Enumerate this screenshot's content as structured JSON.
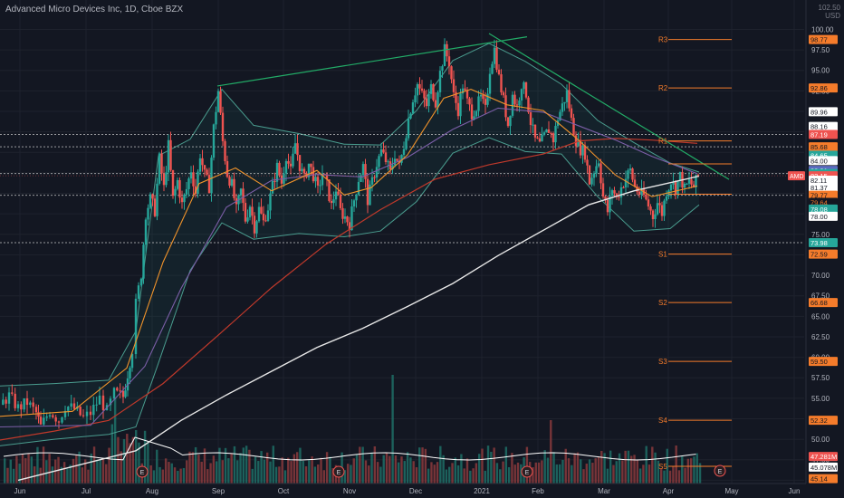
{
  "title": "Advanced Micro Devices Inc, 1D, Cboe BZX",
  "currency_label": "USD",
  "top_tick": "102.50",
  "colors": {
    "background": "#131722",
    "up": "#26a69a",
    "down": "#ef5350",
    "bollinger": "#4a9d8f",
    "trendline": "#22ab67",
    "sma200": "#e8e8e8",
    "sma100": "#c0392b",
    "sma50": "#7b5ea7",
    "sma20": "#f0932b",
    "pivot": "#f57c2b"
  },
  "chart_data": {
    "type": "candlestick",
    "x_ticks": [
      "Jun",
      "Jul",
      "Aug",
      "Sep",
      "Oct",
      "Nov",
      "Dec",
      "2021",
      "Feb",
      "Mar",
      "Apr",
      "May",
      "Jun"
    ],
    "y_ticks": [
      "100.00",
      "97.50",
      "95.00",
      "92.50",
      "90.00",
      "87.50",
      "85.00",
      "82.50",
      "80.00",
      "77.50",
      "75.00",
      "72.50",
      "70.00",
      "67.50",
      "65.00",
      "62.50",
      "60.00",
      "57.50",
      "55.00",
      "52.50",
      "50.00",
      "47.50",
      "45.00"
    ],
    "ylim": [
      44.6,
      101.6
    ],
    "price_path": [
      [
        0,
        54.2
      ],
      [
        10,
        55.3
      ],
      [
        20,
        53.8
      ],
      [
        30,
        54.5
      ],
      [
        40,
        53.2
      ],
      [
        45,
        51.5
      ],
      [
        55,
        53.5
      ],
      [
        65,
        52.3
      ],
      [
        72,
        54.1
      ],
      [
        82,
        53.7
      ],
      [
        92,
        52.6
      ],
      [
        100,
        53.2
      ],
      [
        110,
        55.0
      ],
      [
        118,
        53.4
      ],
      [
        126,
        55.6
      ],
      [
        136,
        55.2
      ],
      [
        141,
        58.0
      ],
      [
        146,
        61.0
      ],
      [
        150,
        66.5
      ],
      [
        156,
        70.2
      ],
      [
        161,
        77.6
      ],
      [
        166,
        79.3
      ],
      [
        171,
        77.9
      ],
      [
        176,
        84.2
      ],
      [
        181,
        80.6
      ],
      [
        186,
        85.8
      ],
      [
        191,
        79.3
      ],
      [
        196,
        81.5
      ],
      [
        201,
        78.6
      ],
      [
        206,
        80.5
      ],
      [
        211,
        82.9
      ],
      [
        216,
        80.1
      ],
      [
        221,
        84.8
      ],
      [
        226,
        82.2
      ],
      [
        231,
        80.8
      ],
      [
        236,
        88.0
      ],
      [
        241,
        92.5
      ],
      [
        246,
        86.3
      ],
      [
        251,
        82.4
      ],
      [
        256,
        81.0
      ],
      [
        261,
        77.9
      ],
      [
        266,
        80.3
      ],
      [
        271,
        76.8
      ],
      [
        276,
        78.6
      ],
      [
        281,
        75.9
      ],
      [
        286,
        78.1
      ],
      [
        291,
        76.5
      ],
      [
        296,
        78.3
      ],
      [
        301,
        80.9
      ],
      [
        306,
        83.2
      ],
      [
        311,
        81.3
      ],
      [
        316,
        84.7
      ],
      [
        321,
        82.6
      ],
      [
        326,
        86.1
      ],
      [
        331,
        83.4
      ],
      [
        336,
        81.7
      ],
      [
        341,
        83.6
      ],
      [
        346,
        82.2
      ],
      [
        351,
        80.3
      ],
      [
        356,
        82.5
      ],
      [
        361,
        81.0
      ],
      [
        366,
        78.4
      ],
      [
        371,
        80.6
      ],
      [
        376,
        77.8
      ],
      [
        381,
        77.1
      ],
      [
        386,
        76.3
      ],
      [
        391,
        79.2
      ],
      [
        396,
        81.8
      ],
      [
        401,
        83.3
      ],
      [
        406,
        79.2
      ],
      [
        411,
        81.4
      ],
      [
        416,
        83.6
      ],
      [
        421,
        85.1
      ],
      [
        426,
        84.0
      ],
      [
        431,
        82.5
      ],
      [
        436,
        84.8
      ],
      [
        441,
        83.2
      ],
      [
        446,
        85.9
      ],
      [
        451,
        89.1
      ],
      [
        456,
        91.6
      ],
      [
        461,
        93.3
      ],
      [
        466,
        92.0
      ],
      [
        471,
        90.7
      ],
      [
        476,
        92.9
      ],
      [
        481,
        91.2
      ],
      [
        486,
        94.7
      ],
      [
        491,
        97.5
      ],
      [
        496,
        96.0
      ],
      [
        501,
        91.9
      ],
      [
        506,
        90.2
      ],
      [
        511,
        93.2
      ],
      [
        516,
        91.1
      ],
      [
        521,
        89.8
      ],
      [
        526,
        90.5
      ],
      [
        531,
        91.6
      ],
      [
        536,
        90.1
      ],
      [
        541,
        95.2
      ],
      [
        546,
        97.6
      ],
      [
        551,
        94.1
      ],
      [
        556,
        91.3
      ],
      [
        561,
        88.4
      ],
      [
        566,
        92.0
      ],
      [
        571,
        90.5
      ],
      [
        576,
        93.4
      ],
      [
        581,
        92.2
      ],
      [
        586,
        88.7
      ],
      [
        591,
        86.5
      ],
      [
        596,
        85.9
      ],
      [
        601,
        86.9
      ],
      [
        606,
        87.8
      ],
      [
        611,
        86.6
      ],
      [
        616,
        89.2
      ],
      [
        621,
        90.7
      ],
      [
        626,
        92.3
      ],
      [
        631,
        88.9
      ],
      [
        636,
        86.5
      ],
      [
        641,
        85.4
      ],
      [
        646,
        84.9
      ],
      [
        651,
        81.4
      ],
      [
        656,
        82.8
      ],
      [
        661,
        84.1
      ],
      [
        666,
        79.6
      ],
      [
        671,
        77.8
      ],
      [
        676,
        80.6
      ],
      [
        681,
        79.4
      ],
      [
        686,
        80.7
      ],
      [
        691,
        81.9
      ],
      [
        696,
        82.8
      ],
      [
        701,
        80.8
      ],
      [
        706,
        80.0
      ],
      [
        711,
        79.7
      ],
      [
        716,
        78.5
      ],
      [
        721,
        77.2
      ],
      [
        726,
        78.9
      ],
      [
        731,
        77.6
      ],
      [
        736,
        80.3
      ],
      [
        741,
        81.5
      ],
      [
        746,
        80.7
      ],
      [
        751,
        82.1
      ],
      [
        756,
        80.5
      ],
      [
        761,
        81.4
      ],
      [
        766,
        80.8
      ],
      [
        771,
        82.15
      ]
    ],
    "sma200_path": [
      [
        20,
        45.0
      ],
      [
        150,
        48.6
      ],
      [
        200,
        52.3
      ],
      [
        250,
        55.4
      ],
      [
        300,
        58.3
      ],
      [
        350,
        61.2
      ],
      [
        400,
        63.5
      ],
      [
        450,
        66.2
      ],
      [
        500,
        69.0
      ],
      [
        550,
        72.4
      ],
      [
        600,
        75.5
      ],
      [
        650,
        78.6
      ],
      [
        700,
        80.3
      ],
      [
        772,
        82.1
      ]
    ],
    "sma100_path": [
      [
        0,
        49.9
      ],
      [
        60,
        51.0
      ],
      [
        120,
        52.3
      ],
      [
        180,
        56.8
      ],
      [
        240,
        62.6
      ],
      [
        300,
        68.5
      ],
      [
        360,
        73.8
      ],
      [
        420,
        78.0
      ],
      [
        480,
        81.7
      ],
      [
        540,
        83.5
      ],
      [
        600,
        84.8
      ],
      [
        640,
        86.4
      ],
      [
        680,
        86.7
      ],
      [
        720,
        86.5
      ],
      [
        770,
        86.1
      ]
    ],
    "sma50_path": [
      [
        0,
        51.5
      ],
      [
        100,
        51.7
      ],
      [
        160,
        58.9
      ],
      [
        200,
        68.4
      ],
      [
        250,
        78.3
      ],
      [
        300,
        81.6
      ],
      [
        350,
        82.3
      ],
      [
        400,
        82.0
      ],
      [
        450,
        84.4
      ],
      [
        500,
        87.8
      ],
      [
        550,
        90.4
      ],
      [
        600,
        89.9
      ],
      [
        640,
        88.2
      ],
      [
        680,
        86.5
      ],
      [
        720,
        84.5
      ],
      [
        770,
        82.4
      ]
    ],
    "sma20_path": [
      [
        0,
        52.8
      ],
      [
        80,
        53.4
      ],
      [
        140,
        58.7
      ],
      [
        180,
        71.6
      ],
      [
        220,
        81.2
      ],
      [
        260,
        83.1
      ],
      [
        300,
        80.3
      ],
      [
        350,
        82.8
      ],
      [
        380,
        79.8
      ],
      [
        410,
        80.7
      ],
      [
        450,
        84.7
      ],
      [
        490,
        91.6
      ],
      [
        520,
        92.7
      ],
      [
        560,
        90.8
      ],
      [
        600,
        90.1
      ],
      [
        640,
        86.4
      ],
      [
        680,
        82.2
      ],
      [
        720,
        79.6
      ],
      [
        770,
        80.9
      ]
    ],
    "upper_band_path": [
      [
        0,
        56.5
      ],
      [
        60,
        56.8
      ],
      [
        120,
        57.2
      ],
      [
        150,
        63.2
      ],
      [
        175,
        84.6
      ],
      [
        210,
        86.6
      ],
      [
        245,
        92.7
      ],
      [
        280,
        88.3
      ],
      [
        330,
        87.3
      ],
      [
        380,
        86.0
      ],
      [
        420,
        85.9
      ],
      [
        460,
        90.1
      ],
      [
        500,
        96.2
      ],
      [
        540,
        98.3
      ],
      [
        580,
        96.1
      ],
      [
        620,
        93.3
      ],
      [
        660,
        88.9
      ],
      [
        700,
        86.2
      ],
      [
        740,
        83.7
      ],
      [
        772,
        82.6
      ]
    ],
    "lower_band_path": [
      [
        0,
        49.2
      ],
      [
        60,
        50.0
      ],
      [
        120,
        50.6
      ],
      [
        150,
        51.5
      ],
      [
        175,
        59.3
      ],
      [
        210,
        70.6
      ],
      [
        245,
        76.4
      ],
      [
        280,
        74.4
      ],
      [
        330,
        75.1
      ],
      [
        380,
        74.7
      ],
      [
        420,
        75.4
      ],
      [
        460,
        79.0
      ],
      [
        500,
        84.9
      ],
      [
        540,
        86.8
      ],
      [
        580,
        85.1
      ],
      [
        620,
        84.8
      ],
      [
        660,
        79.6
      ],
      [
        700,
        75.4
      ],
      [
        740,
        75.7
      ],
      [
        772,
        78.6
      ]
    ],
    "trendlines": [
      {
        "from": [
          240,
          93.1
        ],
        "to": [
          582,
          99.1
        ]
      },
      {
        "from": [
          540,
          99.5
        ],
        "to": [
          805,
          81.7
        ]
      }
    ],
    "horizontal_levels": [
      {
        "price": 87.19,
        "style": "dotted"
      },
      {
        "price": 85.68,
        "style": "dotted"
      },
      {
        "price": 82.42,
        "style": "dotted"
      },
      {
        "price": 79.77,
        "style": "dotted"
      },
      {
        "price": 73.98,
        "style": "dotted"
      }
    ],
    "pivots": [
      {
        "label": "R3",
        "price": 98.77
      },
      {
        "label": "R2",
        "price": 92.86
      },
      {
        "label": "R1",
        "price": 86.4
      },
      {
        "label": "",
        "price": 83.6
      },
      {
        "label": "",
        "price": 79.9
      },
      {
        "label": "S1",
        "price": 72.59
      },
      {
        "label": "S2",
        "price": 66.68
      },
      {
        "label": "S3",
        "price": 59.5
      },
      {
        "label": "S4",
        "price": 52.32
      },
      {
        "label": "S5",
        "price": 46.7
      }
    ],
    "price_labels": [
      {
        "text": "98.77",
        "price": 98.77,
        "bg": "#f57c2b",
        "fg": "#131722"
      },
      {
        "text": "92.86",
        "price": 92.86,
        "bg": "#f57c2b",
        "fg": "#131722"
      },
      {
        "text": "89.96",
        "price": 89.96,
        "bg": "#ffffff",
        "fg": "#131722"
      },
      {
        "text": "88.16",
        "price": 88.16,
        "bg": "#ffffff",
        "fg": "#131722"
      },
      {
        "text": "87.19",
        "price": 87.19,
        "bg": "#ef5350",
        "fg": "#ffffff"
      },
      {
        "text": "85.68",
        "price": 85.68,
        "bg": "#f57c2b",
        "fg": "#131722"
      },
      {
        "text": "84.65",
        "price": 84.65,
        "bg": "#26a69a",
        "fg": "#ffffff"
      },
      {
        "text": "84.00",
        "price": 84.0,
        "bg": "#ffffff",
        "fg": "#131722"
      },
      {
        "text": "82.81",
        "price": 82.81,
        "bg": "#5c6bc0",
        "fg": "#ffffff"
      },
      {
        "text": "82.42",
        "price": 82.42,
        "bg": "#26a69a",
        "fg": "#ffffff"
      },
      {
        "text": "82.15",
        "price": 82.15,
        "bg": "#ef5350",
        "fg": "#ffffff"
      },
      {
        "text": "82.11",
        "price": 81.6,
        "bg": "#ffffff",
        "fg": "#131722"
      },
      {
        "text": "81.37",
        "price": 80.7,
        "bg": "#ffffff",
        "fg": "#131722"
      },
      {
        "text": "79.77",
        "price": 79.77,
        "bg": "#f57c2b",
        "fg": "#131722"
      },
      {
        "text": "79.64",
        "price": 78.9,
        "bg": "#131722",
        "fg": "#f57c2b"
      },
      {
        "text": "78.08",
        "price": 78.08,
        "bg": "#26a69a",
        "fg": "#ffffff"
      },
      {
        "text": "78.00",
        "price": 77.2,
        "bg": "#ffffff",
        "fg": "#131722"
      },
      {
        "text": "73.98",
        "price": 73.98,
        "bg": "#26a69a",
        "fg": "#ffffff"
      },
      {
        "text": "72.59",
        "price": 72.59,
        "bg": "#f57c2b",
        "fg": "#131722"
      },
      {
        "text": "66.68",
        "price": 66.68,
        "bg": "#f57c2b",
        "fg": "#131722"
      },
      {
        "text": "59.50",
        "price": 59.5,
        "bg": "#f57c2b",
        "fg": "#131722"
      },
      {
        "text": "52.32",
        "price": 52.32,
        "bg": "#f57c2b",
        "fg": "#131722"
      },
      {
        "text": "47.281M",
        "price": 47.9,
        "bg": "#ef5350",
        "fg": "#ffffff"
      },
      {
        "text": "45.078M",
        "price": 46.6,
        "bg": "#ffffff",
        "fg": "#131722"
      },
      {
        "text": "45.14",
        "price": 45.2,
        "bg": "#f57c2b",
        "fg": "#131722"
      }
    ],
    "symbol_tag": "AMD",
    "earnings_markers": [
      "E",
      "E",
      "E",
      "E",
      "E"
    ]
  }
}
